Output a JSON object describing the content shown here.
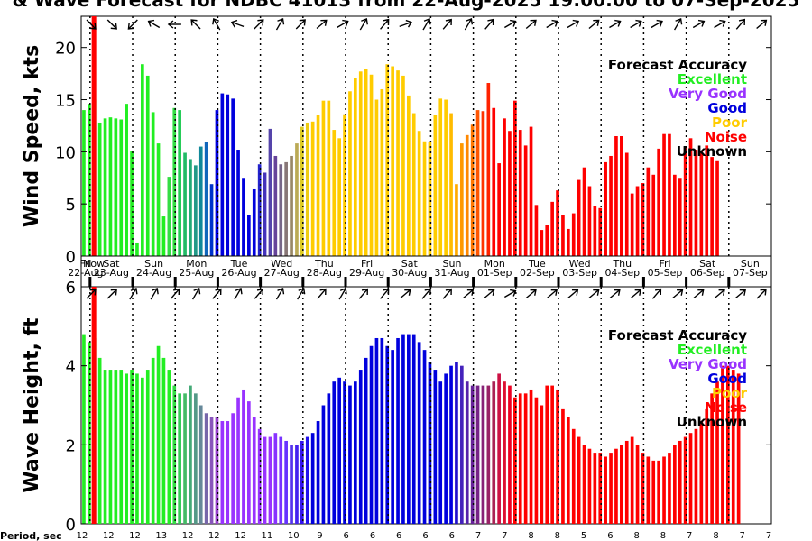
{
  "title": "& Wave Forecast for NDBC 41013 from 22-Aug-2025 19:00:00 to 07-Sep-2025",
  "now_label": "Now",
  "period_label": "Period, sec",
  "legend": {
    "title": "Forecast Accuracy",
    "items": [
      {
        "label": "Excellent",
        "color": "#22ee22"
      },
      {
        "label": "Very Good",
        "color": "#9933ff"
      },
      {
        "label": "Good",
        "color": "#0000dd"
      },
      {
        "label": "Poor",
        "color": "#ffcc00"
      },
      {
        "label": "Noise",
        "color": "#ff0000"
      },
      {
        "label": "Unknown",
        "color": "#000000"
      }
    ]
  },
  "day_labels": [
    {
      "dow": "Fri",
      "date": "22-Aug"
    },
    {
      "dow": "Sat",
      "date": "23-Aug"
    },
    {
      "dow": "Sun",
      "date": "24-Aug"
    },
    {
      "dow": "Mon",
      "date": "25-Aug"
    },
    {
      "dow": "Tue",
      "date": "26-Aug"
    },
    {
      "dow": "Wed",
      "date": "27-Aug"
    },
    {
      "dow": "Thu",
      "date": "28-Aug"
    },
    {
      "dow": "Fri",
      "date": "29-Aug"
    },
    {
      "dow": "Sat",
      "date": "30-Aug"
    },
    {
      "dow": "Sun",
      "date": "31-Aug"
    },
    {
      "dow": "Mon",
      "date": "01-Sep"
    },
    {
      "dow": "Tue",
      "date": "02-Sep"
    },
    {
      "dow": "Wed",
      "date": "03-Sep"
    },
    {
      "dow": "Thu",
      "date": "04-Sep"
    },
    {
      "dow": "Fri",
      "date": "05-Sep"
    },
    {
      "dow": "Sat",
      "date": "06-Sep"
    },
    {
      "dow": "Sun",
      "date": "07-Sep"
    }
  ],
  "period_values": [
    "12",
    "12",
    "12",
    "13",
    "12",
    "12",
    "12",
    "11",
    "10",
    "9",
    "6",
    "6",
    "6",
    "6",
    "6",
    "7",
    "7",
    "8",
    "8",
    "5",
    "6",
    "8",
    "8",
    "7",
    "8",
    "7",
    "7"
  ],
  "chart_data": [
    {
      "type": "bar",
      "title": "Wind Speed",
      "ylabel": "Wind Speed, kts",
      "ylim": [
        0,
        23
      ],
      "yticks": [
        0,
        5,
        10,
        15,
        20
      ],
      "time_range_days": [
        0,
        16.208
      ],
      "bar_interval_hours": 3,
      "values": [
        14.0,
        14.6,
        15.0,
        12.8,
        13.2,
        13.3,
        13.2,
        13.1,
        14.6,
        10.1,
        1.3,
        18.4,
        17.3,
        13.8,
        10.8,
        3.8,
        7.6,
        14.2,
        14.0,
        9.9,
        9.3,
        8.7,
        10.5,
        10.9,
        6.9,
        14.0,
        15.6,
        15.5,
        15.1,
        10.2,
        7.5,
        3.9,
        6.4,
        8.8,
        8.0,
        12.2,
        9.6,
        8.8,
        9.0,
        9.6,
        10.8,
        12.4,
        12.8,
        12.9,
        13.5,
        14.9,
        14.9,
        12.1,
        11.3,
        13.6,
        15.8,
        17.1,
        17.7,
        17.9,
        17.4,
        15.0,
        16.0,
        18.4,
        18.2,
        17.8,
        17.3,
        15.4,
        13.7,
        12.0,
        11.0,
        10.9,
        13.5,
        15.1,
        15.0,
        13.7,
        6.9,
        10.8,
        11.6,
        12.6,
        14.0,
        13.9,
        16.6,
        14.2,
        8.9,
        13.2,
        12.0,
        14.9,
        12.1,
        10.6,
        12.4,
        4.9,
        2.5,
        3.0,
        5.2,
        6.3,
        3.9,
        2.6,
        4.1,
        7.3,
        8.5,
        6.7,
        4.8,
        4.6,
        9.0,
        9.6,
        11.5,
        11.5,
        9.9,
        6.0,
        6.7,
        7.0,
        8.5,
        7.8,
        10.3,
        11.7,
        11.7,
        7.8,
        7.5,
        10.5,
        11.3,
        10.2,
        10.1,
        10.6,
        9.5,
        9.1
      ],
      "colors": [
        "#22ee22",
        "#22ee22",
        "#22ee22",
        "#22ee22",
        "#22ee22",
        "#22ee22",
        "#22ee22",
        "#22ee22",
        "#22ee22",
        "#22ee22",
        "#22ee22",
        "#22ee22",
        "#22ee22",
        "#22ee22",
        "#22ee22",
        "#22ee22",
        "#33dd44",
        "#33dd44",
        "#22cc55",
        "#22bb66",
        "#22aa77",
        "#229988",
        "#118899",
        "#1166bb",
        "#0033cc",
        "#0000dd",
        "#0000dd",
        "#0000dd",
        "#0000dd",
        "#0000dd",
        "#0000dd",
        "#0000dd",
        "#0000dd",
        "#2222cc",
        "#4433bb",
        "#5544aa",
        "#664499",
        "#776688",
        "#887777",
        "#998866",
        "#bbaa55",
        "#ddcc22",
        "#eecc11",
        "#ffcc00",
        "#ffcc00",
        "#ffcc00",
        "#ffcc00",
        "#ffcc00",
        "#ffcc00",
        "#ffcc00",
        "#ffcc00",
        "#ffcc00",
        "#ffcc00",
        "#ffcc00",
        "#ffcc00",
        "#ffcc00",
        "#ffcc00",
        "#ffcc00",
        "#ffcc00",
        "#ffcc00",
        "#ffcc00",
        "#ffcc00",
        "#ffcc00",
        "#ffcc00",
        "#ffcc00",
        "#ffcc00",
        "#ffcc00",
        "#ffcc00",
        "#ffcc00",
        "#ffbb00",
        "#ffaa00",
        "#ff9900",
        "#ff8800",
        "#ff7700",
        "#ff5500",
        "#ff3300",
        "#ff2200",
        "#ff0000",
        "#ff0000",
        "#ff0000",
        "#ff0000",
        "#ff0000",
        "#ff0000",
        "#ff0000",
        "#ff0000",
        "#ff0000",
        "#ff0000",
        "#ff0000",
        "#ff0000",
        "#ff0000",
        "#ff0000",
        "#ff0000",
        "#ff0000",
        "#ff0000",
        "#ff0000",
        "#ff0000",
        "#ff0000",
        "#ff0000",
        "#ff0000",
        "#ff0000",
        "#ff0000",
        "#ff0000",
        "#ff0000",
        "#ff0000",
        "#ff0000",
        "#ff0000",
        "#ff0000",
        "#ff0000",
        "#ff0000",
        "#ff0000",
        "#ff0000",
        "#ff0000",
        "#ff0000",
        "#ff0000",
        "#ff0000",
        "#ff0000",
        "#ff0000",
        "#ff0000",
        "#ff0000",
        "#ff0000"
      ],
      "direction_arrows_deg": [
        45,
        45,
        135,
        210,
        180,
        225,
        240,
        200,
        315,
        300,
        315,
        320,
        330,
        300,
        310,
        340,
        300,
        310,
        300,
        310,
        330,
        320,
        330,
        330,
        320,
        330,
        330,
        330,
        300,
        330,
        330,
        310,
        320
      ],
      "now_day": 0.3
    },
    {
      "type": "bar",
      "title": "Wave Height",
      "ylabel": "Wave Height, ft",
      "ylim": [
        0,
        6
      ],
      "yticks": [
        0,
        2,
        4,
        6
      ],
      "time_range_days": [
        0,
        16.208
      ],
      "bar_interval_hours": 3,
      "values": [
        4.8,
        4.6,
        4.7,
        4.2,
        3.9,
        3.9,
        3.9,
        3.9,
        3.8,
        3.9,
        3.8,
        3.7,
        3.9,
        4.2,
        4.5,
        4.2,
        3.9,
        3.5,
        3.3,
        3.3,
        3.5,
        3.3,
        3.0,
        2.8,
        2.7,
        2.7,
        2.6,
        2.6,
        2.8,
        3.2,
        3.4,
        3.1,
        2.7,
        2.4,
        2.2,
        2.2,
        2.3,
        2.2,
        2.1,
        2.0,
        2.0,
        2.1,
        2.2,
        2.3,
        2.6,
        3.0,
        3.3,
        3.6,
        3.7,
        3.6,
        3.5,
        3.6,
        3.9,
        4.2,
        4.5,
        4.7,
        4.7,
        4.5,
        4.4,
        4.7,
        4.8,
        4.8,
        4.8,
        4.6,
        4.4,
        4.1,
        3.9,
        3.6,
        3.8,
        4.0,
        4.1,
        4.0,
        3.6,
        3.5,
        3.5,
        3.5,
        3.5,
        3.6,
        3.8,
        3.6,
        3.5,
        3.2,
        3.3,
        3.3,
        3.4,
        3.2,
        3.0,
        3.5,
        3.5,
        3.4,
        2.9,
        2.7,
        2.4,
        2.2,
        2.0,
        1.9,
        1.8,
        1.8,
        1.7,
        1.8,
        1.9,
        2.0,
        2.1,
        2.2,
        2.0,
        1.8,
        1.7,
        1.6,
        1.6,
        1.7,
        1.8,
        2.0,
        2.1,
        2.2,
        2.3,
        2.4,
        2.6,
        2.9,
        3.3,
        3.6,
        4.0,
        4.0,
        3.9,
        3.8
      ],
      "colors": [
        "#22ee22",
        "#22ee22",
        "#22ee22",
        "#22ee22",
        "#22ee22",
        "#22ee22",
        "#22ee22",
        "#22ee22",
        "#22ee22",
        "#22ee22",
        "#22ee22",
        "#22ee22",
        "#22ee22",
        "#22ee22",
        "#22ee22",
        "#22ee22",
        "#22ee22",
        "#33dd44",
        "#33cc55",
        "#44bb66",
        "#44aa77",
        "#559988",
        "#668899",
        "#7766aa",
        "#8855bb",
        "#9944cc",
        "#9933ff",
        "#9933ff",
        "#9933ff",
        "#9933ff",
        "#9933ff",
        "#9933ff",
        "#9933ff",
        "#9933ff",
        "#9933ff",
        "#9933ff",
        "#8833ff",
        "#7733ff",
        "#6633ff",
        "#5533ee",
        "#4422ee",
        "#3311ee",
        "#2211ee",
        "#0000dd",
        "#0000dd",
        "#0000dd",
        "#0000dd",
        "#0000dd",
        "#0000dd",
        "#0000dd",
        "#0000dd",
        "#0000dd",
        "#0000dd",
        "#0000dd",
        "#0000dd",
        "#0000dd",
        "#0000dd",
        "#0000dd",
        "#0000dd",
        "#0000dd",
        "#0000dd",
        "#0000dd",
        "#0000dd",
        "#0000dd",
        "#0000dd",
        "#0000dd",
        "#0000dd",
        "#0000dd",
        "#0000dd",
        "#0000dd",
        "#2211cc",
        "#4422bb",
        "#5522aa",
        "#662299",
        "#772288",
        "#882277",
        "#992266",
        "#aa2255",
        "#cc1144",
        "#dd1133",
        "#ee0022",
        "#ff0000",
        "#ff0000",
        "#ff0000",
        "#ff0000",
        "#ff0000",
        "#ff0000",
        "#ff0000",
        "#ff0000",
        "#ff0000",
        "#ff0000",
        "#ff0000",
        "#ff0000",
        "#ff0000",
        "#ff0000",
        "#ff0000",
        "#ff0000",
        "#ff0000",
        "#ff0000",
        "#ff0000",
        "#ff0000",
        "#ff0000",
        "#ff0000",
        "#ff0000",
        "#ff0000",
        "#ff0000",
        "#ff0000",
        "#ff0000",
        "#ff0000",
        "#ff0000",
        "#ff0000",
        "#ff0000",
        "#ff0000",
        "#ff0000",
        "#ff0000",
        "#ff0000",
        "#ff0000",
        "#ff0000",
        "#ff0000",
        "#ff0000",
        "#ff0000",
        "#ff0000",
        "#ff0000",
        "#ff0000"
      ],
      "direction_arrows_deg": [
        315,
        315,
        300,
        300,
        310,
        300,
        310,
        300,
        310,
        300,
        300,
        310,
        300,
        310,
        310,
        320,
        310,
        310,
        320,
        320,
        330,
        320,
        320,
        320,
        320,
        320,
        320,
        310,
        320,
        320,
        320,
        320,
        315
      ],
      "now_day": 0.3
    }
  ]
}
